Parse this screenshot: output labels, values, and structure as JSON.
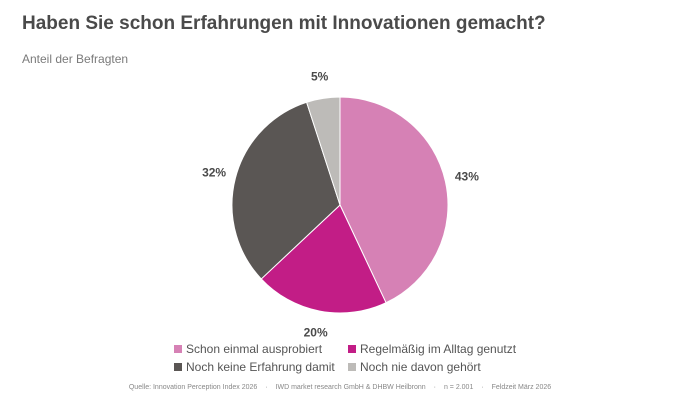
{
  "title": "Haben Sie schon Erfahrungen mit Innovationen gemacht?",
  "subtitle": "Anteil der Befragten",
  "chart_data": {
    "type": "pie",
    "title": "Haben Sie schon Erfahrungen mit Innovationen gemacht?",
    "subtitle": "Anteil der Befragten",
    "categories": [
      "Schon einmal ausprobiert",
      "Regelmäßig im Alltag genutzt",
      "Noch keine Erfahrung damit",
      "Noch nie davon gehört"
    ],
    "values": [
      43,
      20,
      32,
      5
    ],
    "labels": [
      "43%",
      "20%",
      "32%",
      "5%"
    ],
    "colors": [
      "#d681b5",
      "#c21d86",
      "#5a5654",
      "#bdbbb8"
    ],
    "legend_placement": "bottom"
  },
  "footer": {
    "parts": [
      "Quelle: Innovation Perception Index 2026",
      "·",
      "IWD market research GmbH & DHBW Heilbronn",
      "·",
      "n = 2.001",
      "·",
      "Feldzeit März 2026"
    ]
  }
}
